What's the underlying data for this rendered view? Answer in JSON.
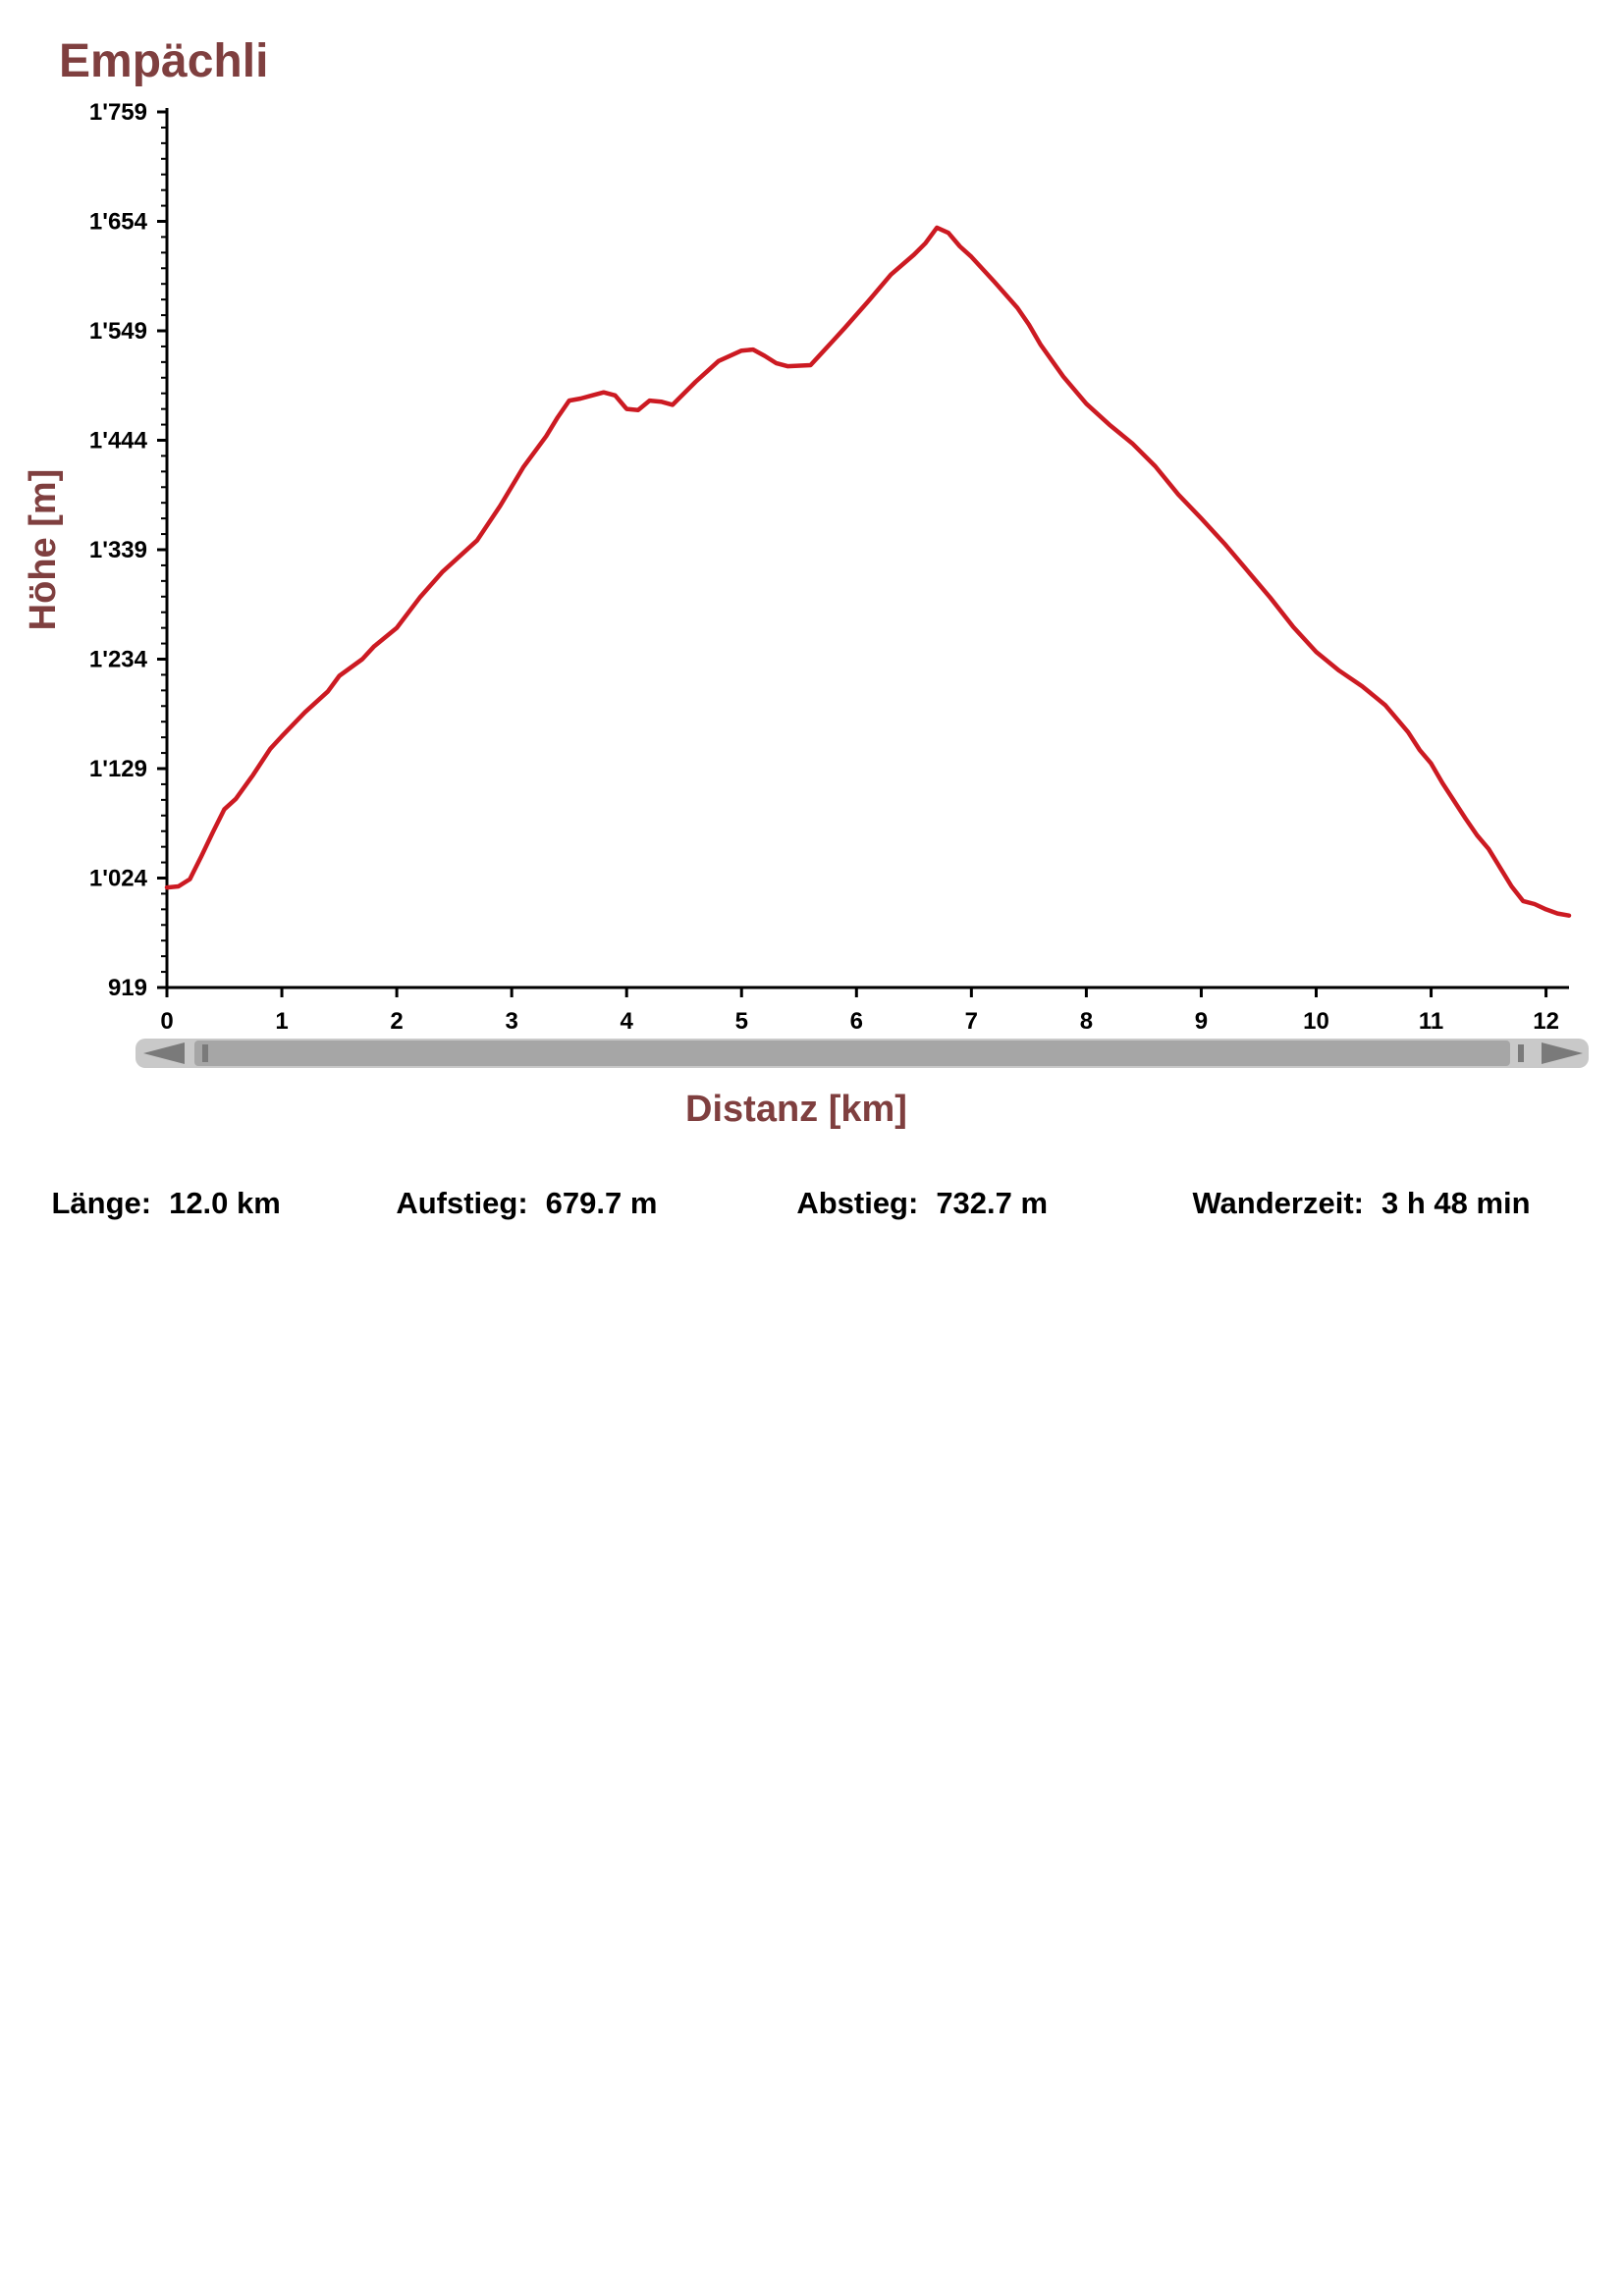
{
  "colors": {
    "accent": "#7f3f3f",
    "line": "#cc1a22",
    "scrollbar": "#a6a6a6",
    "scrollbar_dark": "#7a7a7a",
    "axis": "#000000"
  },
  "scrollbar": {
    "left_icon": "triangle-left-icon",
    "right_icon": "triangle-right-icon"
  },
  "stats": {
    "length_label": "Länge:",
    "length_value": "12.0 km",
    "ascent_label": "Aufstieg:",
    "ascent_value": "679.7 m",
    "descent_label": "Abstieg:",
    "descent_value": "732.7 m",
    "time_label": "Wanderzeit:",
    "time_value": "3 h 48 min"
  },
  "chart_data": {
    "type": "line",
    "title": "Empächli",
    "xlabel": "Distanz [km]",
    "ylabel": "Höhe [m]",
    "xlim": [
      0,
      12.2
    ],
    "ylim": [
      919,
      1759
    ],
    "x_ticks": [
      0,
      1,
      2,
      3,
      4,
      5,
      6,
      7,
      8,
      9,
      10,
      11,
      12
    ],
    "x_tick_labels": [
      "0",
      "1",
      "2",
      "3",
      "4",
      "5",
      "6",
      "7",
      "8",
      "9",
      "10",
      "11",
      "12"
    ],
    "y_ticks": [
      919,
      1024,
      1129,
      1234,
      1339,
      1444,
      1549,
      1654,
      1759
    ],
    "y_tick_labels": [
      "919",
      "1'024",
      "1'129",
      "1'234",
      "1'339",
      "1'444",
      "1'549",
      "1'654",
      "1'759"
    ],
    "grid": false,
    "series": [
      {
        "x": [
          0,
          0.1,
          0.2,
          0.3,
          0.4,
          0.5,
          0.6,
          0.75,
          0.9,
          1.0,
          1.2,
          1.4,
          1.5,
          1.6,
          1.7,
          1.8,
          2.0,
          2.2,
          2.4,
          2.5,
          2.7,
          2.9,
          3.1,
          3.3,
          3.4,
          3.5,
          3.6,
          3.7,
          3.8,
          3.9,
          4.0,
          4.1,
          4.2,
          4.3,
          4.4,
          4.6,
          4.7,
          4.8,
          5.0,
          5.1,
          5.2,
          5.3,
          5.4,
          5.6,
          5.7,
          5.8,
          5.9,
          6.1,
          6.3,
          6.5,
          6.6,
          6.7,
          6.8,
          6.9,
          7.0,
          7.2,
          7.4,
          7.5,
          7.6,
          7.8,
          8.0,
          8.2,
          8.4,
          8.6,
          8.8,
          9.0,
          9.2,
          9.4,
          9.6,
          9.8,
          10.0,
          10.2,
          10.4,
          10.6,
          10.8,
          10.9,
          11.0,
          11.1,
          11.3,
          11.4,
          11.5,
          11.6,
          11.7,
          11.8,
          11.9,
          12.0,
          12.1,
          12.2
        ],
        "y": [
          1015,
          1016,
          1023,
          1045,
          1068,
          1090,
          1100,
          1123,
          1148,
          1160,
          1183,
          1203,
          1218,
          1226,
          1234,
          1246,
          1264,
          1293,
          1318,
          1328,
          1348,
          1381,
          1418,
          1448,
          1466,
          1482,
          1484,
          1487,
          1490,
          1487,
          1474,
          1473,
          1482,
          1481,
          1478,
          1500,
          1510,
          1520,
          1530,
          1531,
          1525,
          1518,
          1515,
          1516,
          1528,
          1540,
          1552,
          1577,
          1603,
          1622,
          1633,
          1648,
          1643,
          1630,
          1620,
          1596,
          1571,
          1555,
          1536,
          1505,
          1479,
          1459,
          1441,
          1419,
          1392,
          1369,
          1345,
          1319,
          1293,
          1265,
          1241,
          1223,
          1208,
          1190,
          1164,
          1147,
          1134,
          1115,
          1081,
          1065,
          1052,
          1034,
          1016,
          1002,
          999,
          994,
          990,
          988
        ]
      }
    ]
  }
}
